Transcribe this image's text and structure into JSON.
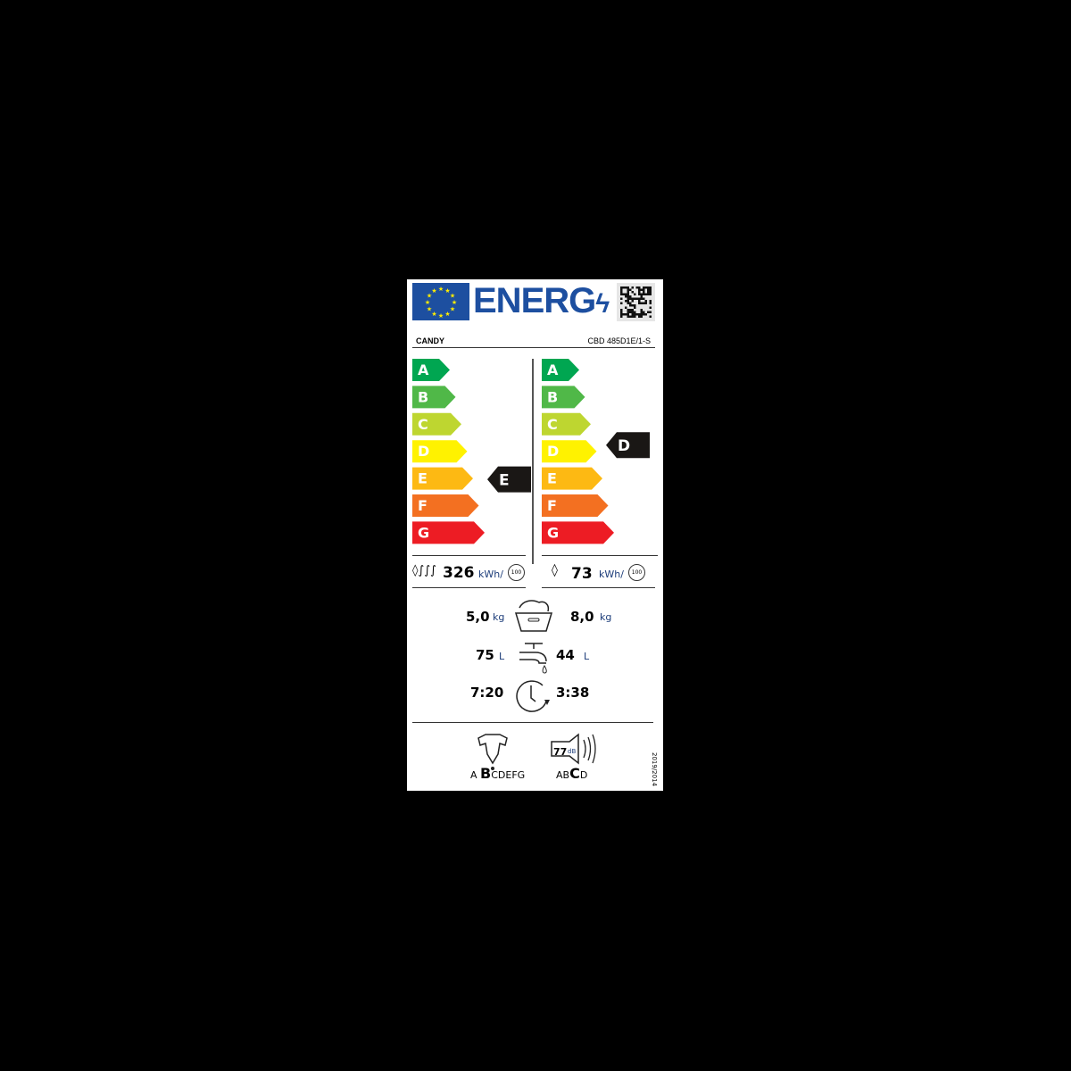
{
  "header": {
    "logo_text": "ENERG",
    "brand": "CANDY",
    "model": "CBD 485D1E/1-S"
  },
  "scale": {
    "classes": [
      "A",
      "B",
      "C",
      "D",
      "E",
      "F",
      "G"
    ],
    "colors": [
      "#00a651",
      "#50b848",
      "#bed630",
      "#fff200",
      "#fdb913",
      "#f37021",
      "#ed1c24"
    ]
  },
  "washer_dryer": {
    "energy_class": "E",
    "energy_value": "326",
    "energy_unit": "kWh/",
    "cycles": "100",
    "capacity": "5,0",
    "capacity_unit": "kg",
    "water": "75",
    "water_unit": "L",
    "duration": "7:20"
  },
  "washing": {
    "energy_class": "D",
    "energy_value": "73",
    "energy_unit": "kWh/",
    "cycles": "100",
    "capacity": "8,0",
    "capacity_unit": "kg",
    "water": "44",
    "water_unit": "L",
    "duration": "3:38"
  },
  "spin": {
    "prefix": "A",
    "class": "B",
    "suffix": "CDEFG"
  },
  "noise": {
    "value": "77",
    "unit": "dB",
    "prefix": "AB",
    "class": "C",
    "suffix": "D"
  },
  "regulation": "2019/2014"
}
